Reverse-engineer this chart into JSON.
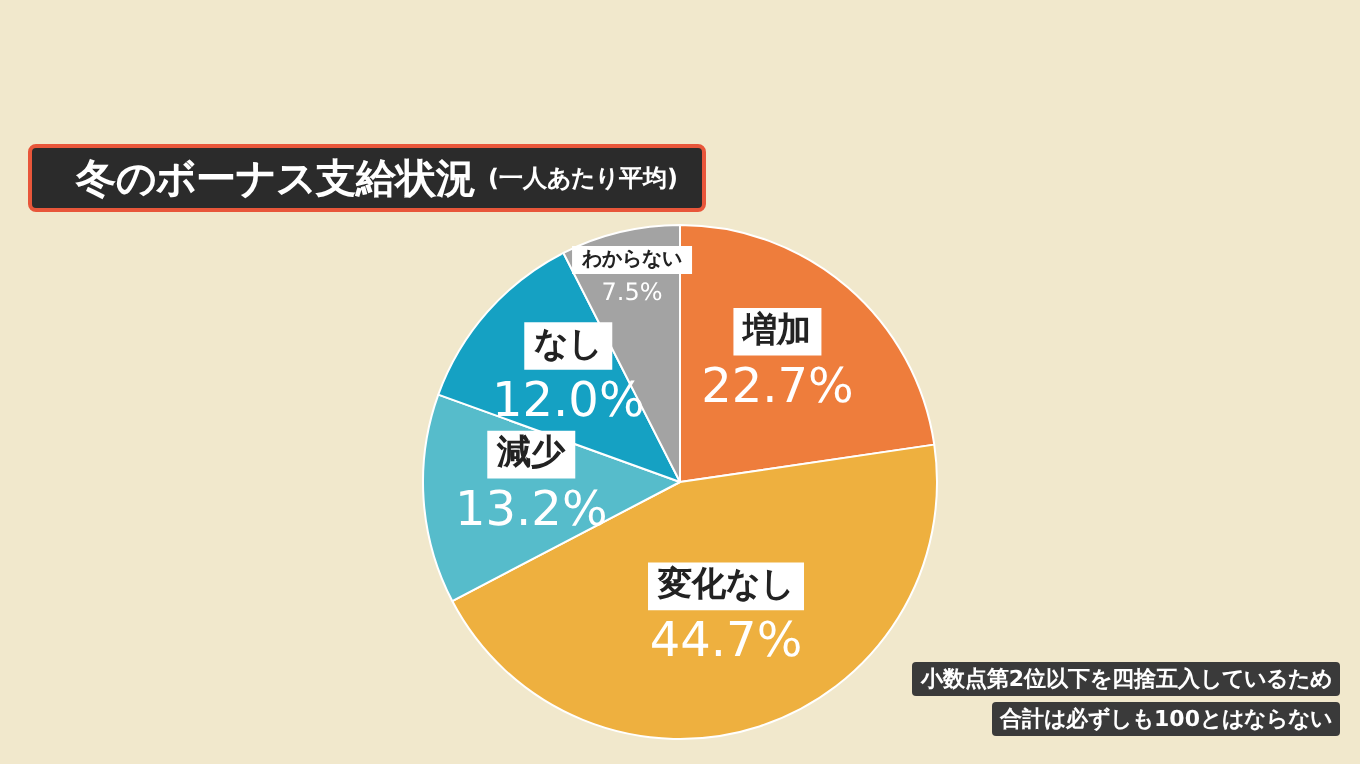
{
  "chart_data": {
    "type": "pie",
    "title": "冬のボーナス支給状況",
    "subtitle": "(一人あたり平均)",
    "categories": [
      "増加",
      "変化なし",
      "減少",
      "なし",
      "わからない"
    ],
    "values": [
      22.7,
      44.7,
      13.2,
      12.0,
      7.5
    ],
    "colors": [
      "#ee7d3c",
      "#eeb03f",
      "#56bccb",
      "#15a1c3",
      "#a3a3a3"
    ],
    "value_labels": [
      "22.7%",
      "44.7%",
      "13.2%",
      "12.0%",
      "7.5%"
    ],
    "annotations": [
      "小数点第2位以下を四捨五入しているため",
      "合計は必ずしも100とはならない"
    ]
  }
}
